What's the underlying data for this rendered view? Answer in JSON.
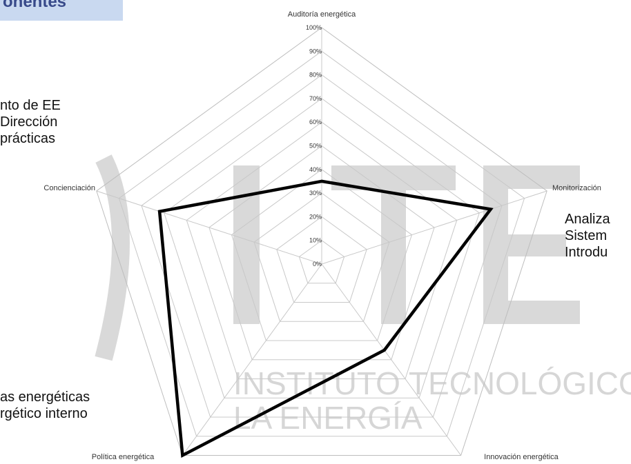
{
  "slide": {
    "header": "onentes",
    "left_top_lines": [
      "nto de EE",
      "Dirección",
      "prácticas"
    ],
    "right_lines": [
      "Analiza",
      "Sistem",
      "Introdu"
    ],
    "left_bottom_lines": [
      "as energéticas",
      "rgético interno"
    ]
  },
  "watermark": {
    "line1": "INSTITUTO TECNOLÓGICO DE",
    "line2": "LA ENERGÍA",
    "color": "#d9d9d9"
  },
  "chart_data": {
    "type": "radar",
    "axes": [
      "Auditoría energética",
      "Monitorización",
      "Innovación energética",
      "Política energética",
      "Concienciación"
    ],
    "tick_labels": [
      "0%",
      "10%",
      "20%",
      "30%",
      "40%",
      "50%",
      "60%",
      "70%",
      "80%",
      "90%",
      "100%"
    ],
    "range": [
      0,
      100
    ],
    "grid": true,
    "series": [
      {
        "values": [
          35,
          75,
          45,
          100,
          72
        ],
        "color": "#000000"
      }
    ]
  }
}
